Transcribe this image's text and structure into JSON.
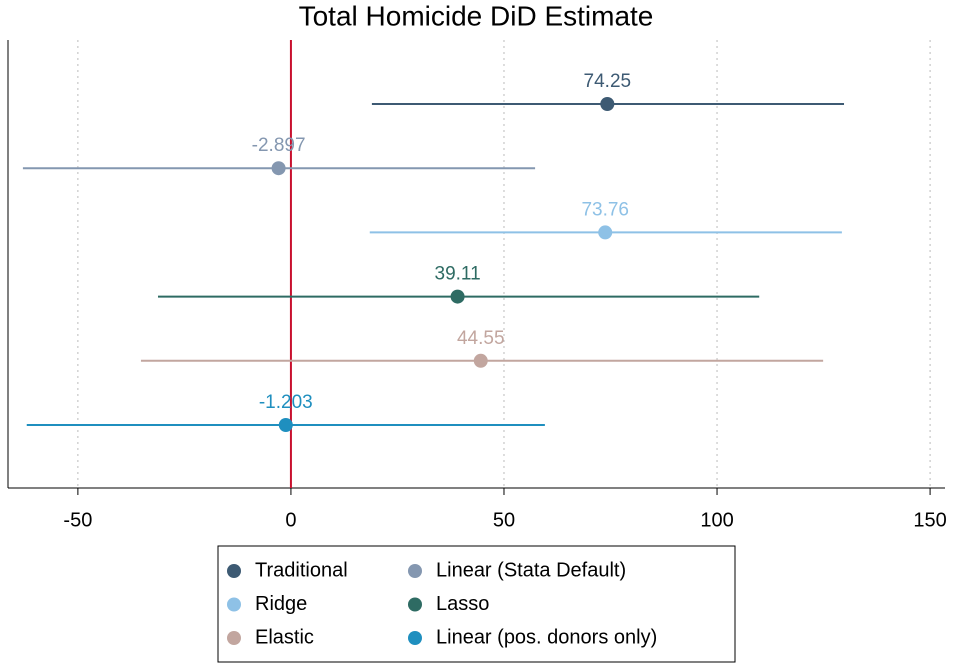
{
  "chart_data": {
    "type": "dotwhisker",
    "title": "Total Homicide DiD Estimate",
    "xlim": [
      -66.4,
      153.5
    ],
    "xticks": [
      -50,
      0,
      50,
      100,
      150
    ],
    "grid": true,
    "reference_line": {
      "value": 0,
      "color": "#c8102e"
    },
    "series": [
      {
        "name": "Traditional",
        "color": "#3d5a73",
        "values": [
          74.25
        ],
        "lower": [
          19.0
        ],
        "upper": [
          129.8
        ]
      },
      {
        "name": "Linear (Stata Default)",
        "color": "#8497b0",
        "values": [
          -2.897
        ],
        "lower": [
          -62.9
        ],
        "upper": [
          57.3
        ]
      },
      {
        "name": "Ridge",
        "color": "#8ec1e6",
        "values": [
          73.76
        ],
        "lower": [
          18.5
        ],
        "upper": [
          129.3
        ]
      },
      {
        "name": "Lasso",
        "color": "#2e6b63",
        "values": [
          39.11
        ],
        "lower": [
          -31.2
        ],
        "upper": [
          109.9
        ]
      },
      {
        "name": "Elastic",
        "color": "#c2a69f",
        "values": [
          44.55
        ],
        "lower": [
          -35.2
        ],
        "upper": [
          124.9
        ]
      },
      {
        "name": "Linear (pos. donors only)",
        "color": "#1f8fbf",
        "values": [
          -1.203
        ],
        "lower": [
          -62.0
        ],
        "upper": [
          59.6
        ]
      }
    ]
  }
}
